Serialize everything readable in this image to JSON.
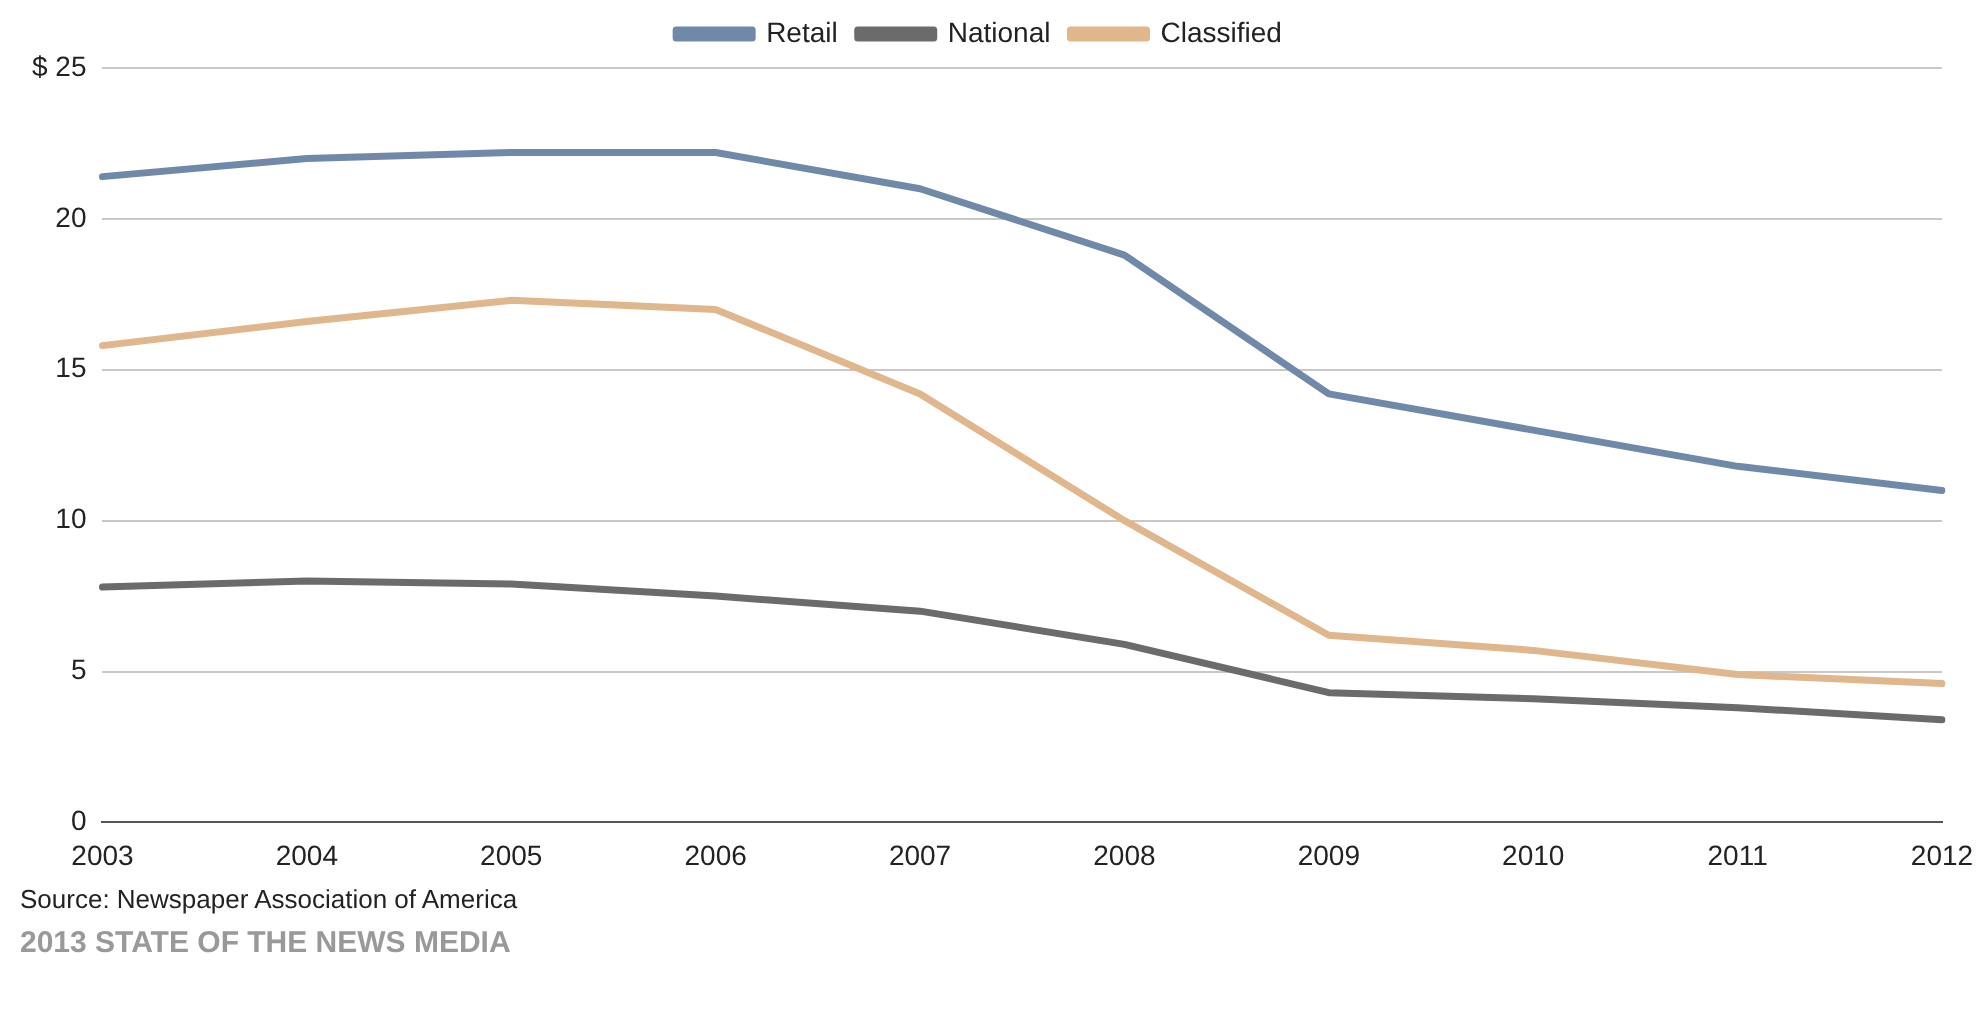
{
  "chart_data": {
    "type": "line",
    "categories": [
      "2003",
      "2004",
      "2005",
      "2006",
      "2007",
      "2008",
      "2009",
      "2010",
      "2011",
      "2012"
    ],
    "series": [
      {
        "name": "Retail",
        "color": "#7189a8",
        "values": [
          21.4,
          22.0,
          22.2,
          22.2,
          21.0,
          18.8,
          14.2,
          13.0,
          11.8,
          11.0
        ]
      },
      {
        "name": "National",
        "color": "#6b6b6b",
        "values": [
          7.8,
          8.0,
          7.9,
          7.5,
          7.0,
          5.9,
          4.3,
          4.1,
          3.8,
          3.4
        ]
      },
      {
        "name": "Classified",
        "color": "#e0b68c",
        "values": [
          15.8,
          16.6,
          17.3,
          17.0,
          14.2,
          10.0,
          6.2,
          5.7,
          4.9,
          4.6
        ]
      }
    ],
    "ylim": [
      0,
      25
    ],
    "yticks": [
      0,
      5,
      10,
      15,
      20,
      {
        "value": 25,
        "label": "$ 25"
      }
    ],
    "grid": "y",
    "legend": "top",
    "marker": "none",
    "line_style": "solid",
    "annotations": [
      "Source: Newspaper Association of America",
      "2013 STATE OF THE NEWS MEDIA"
    ]
  }
}
